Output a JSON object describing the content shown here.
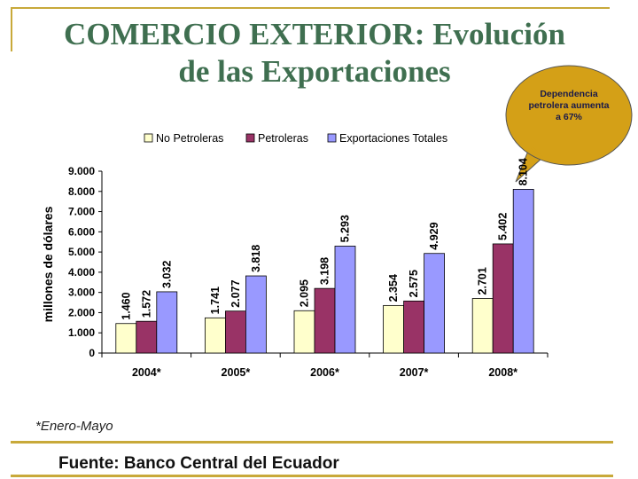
{
  "title": {
    "line1_bold": "COMERCIO EXTERIOR:",
    "line1_rest": " Evolución",
    "line2": "de las Exportaciones"
  },
  "callout": "Dependencia petrolera aumenta a 67%",
  "footnote": "*Enero-Mayo",
  "source": "Fuente: Banco Central del Ecuador",
  "colors": {
    "no_petroleras": "#ffffcc",
    "petroleras": "#993366",
    "totales": "#9999ff",
    "title": "#3f6f50",
    "frame": "#c8a93a",
    "bubble": "#d4a017"
  },
  "chart_data": {
    "type": "bar",
    "title": "",
    "xlabel": "",
    "ylabel": "millones de dólares",
    "ylim": [
      0,
      9000
    ],
    "yticks": [
      "0",
      "1.000",
      "2.000",
      "3.000",
      "4.000",
      "5.000",
      "6.000",
      "7.000",
      "8.000",
      "9.000"
    ],
    "categories": [
      "2004*",
      "2005*",
      "2006*",
      "2007*",
      "2008*"
    ],
    "series": [
      {
        "name": "No Petroleras",
        "values": [
          1460,
          1741,
          2095,
          2354,
          2701
        ],
        "labels": [
          "1.460",
          "1.741",
          "2.095",
          "2.354",
          "2.701"
        ]
      },
      {
        "name": "Petroleras",
        "values": [
          1572,
          2077,
          3198,
          2575,
          5402
        ],
        "labels": [
          "1.572",
          "2.077",
          "3.198",
          "2.575",
          "5.402"
        ]
      },
      {
        "name": "Exportaciones Totales",
        "values": [
          3032,
          3818,
          5293,
          4929,
          8104
        ],
        "labels": [
          "3.032",
          "3.818",
          "5.293",
          "4.929",
          "8.104"
        ]
      }
    ],
    "legend": "top"
  }
}
